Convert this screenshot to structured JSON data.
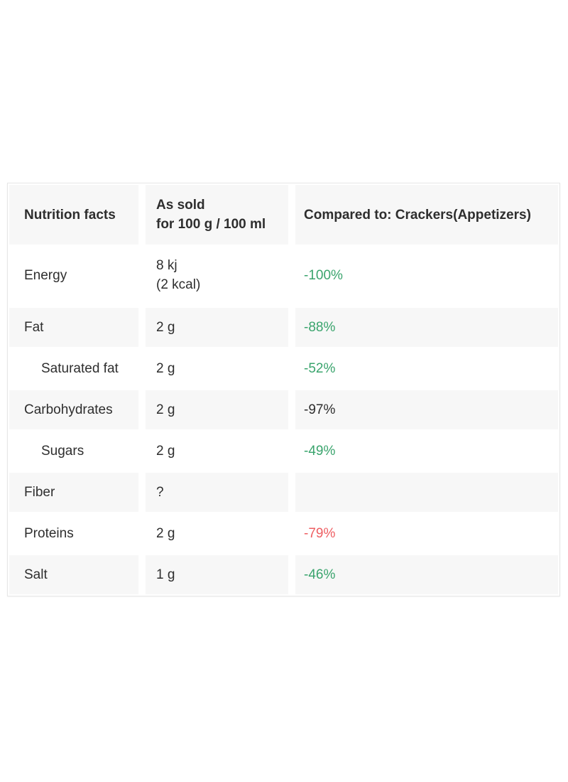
{
  "colors": {
    "green": "#3aa46d",
    "red": "#ee5e62",
    "neutral": "#2e2e2e",
    "alt_row_bg": "#f7f7f7",
    "card_border": "#e6e6e6",
    "text": "#2e2e2e"
  },
  "table": {
    "header": {
      "name_col": "Nutrition facts",
      "value_col_lines": [
        "As sold",
        "for 100 g / 100 ml"
      ],
      "comparison_col": "Compared to: Crackers(Appetizers)"
    },
    "rows": [
      {
        "name": "Energy",
        "value_lines": [
          "8 kj",
          "(2 kcal)"
        ],
        "comparison": "-100%",
        "comparison_color": "green",
        "indent": false,
        "tall": true
      },
      {
        "name": "Fat",
        "value_lines": [
          "2 g"
        ],
        "comparison": "-88%",
        "comparison_color": "green",
        "indent": false,
        "tall": false
      },
      {
        "name": "Saturated fat",
        "value_lines": [
          "2 g"
        ],
        "comparison": "-52%",
        "comparison_color": "green",
        "indent": true,
        "tall": false
      },
      {
        "name": "Carbohydrates",
        "value_lines": [
          "2 g"
        ],
        "comparison": "-97%",
        "comparison_color": "neutral",
        "indent": false,
        "tall": false
      },
      {
        "name": "Sugars",
        "value_lines": [
          "2 g"
        ],
        "comparison": "-49%",
        "comparison_color": "green",
        "indent": true,
        "tall": false
      },
      {
        "name": "Fiber",
        "value_lines": [
          "?"
        ],
        "comparison": "",
        "comparison_color": "neutral",
        "indent": false,
        "tall": false
      },
      {
        "name": "Proteins",
        "value_lines": [
          "2 g"
        ],
        "comparison": "-79%",
        "comparison_color": "red",
        "indent": false,
        "tall": false
      },
      {
        "name": "Salt",
        "value_lines": [
          "1 g"
        ],
        "comparison": "-46%",
        "comparison_color": "green",
        "indent": false,
        "tall": false
      }
    ]
  }
}
